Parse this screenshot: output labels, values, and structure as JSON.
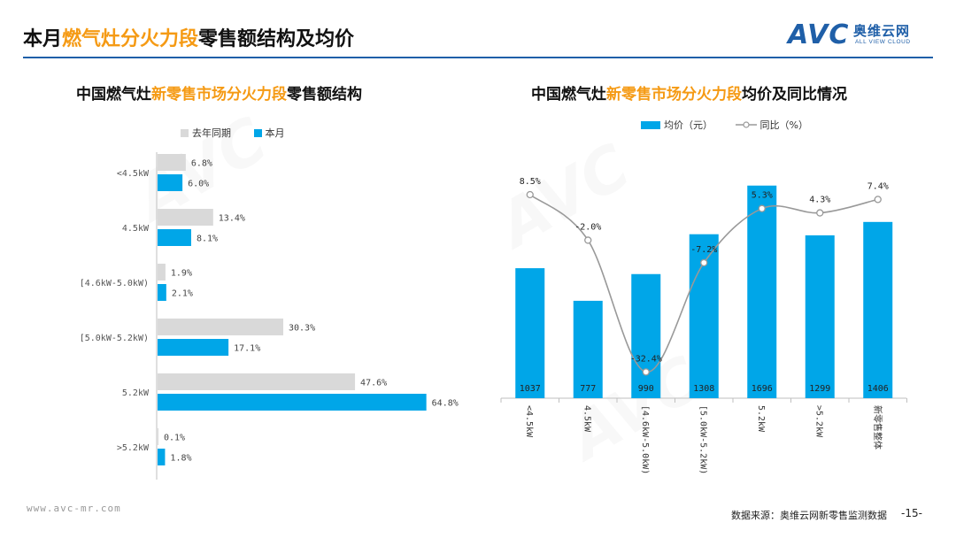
{
  "header": {
    "title_prefix": "本月",
    "title_highlight": "燃气灶分火力段",
    "title_suffix": "零售额结构及均价",
    "logo_mark": "AVC",
    "logo_cn": "奥维云网",
    "logo_en": "ALL VIEW CLOUD"
  },
  "left_chart": {
    "title_prefix": "中国燃气灶",
    "title_highlight": "新零售市场分火力段",
    "title_suffix": "零售额结构",
    "legend": [
      "去年同期",
      "本月"
    ]
  },
  "right_chart": {
    "title_prefix": "中国燃气灶",
    "title_highlight": "新零售市场分火力段",
    "title_suffix": "均价及同比情况",
    "legend": [
      "均价（元）",
      "同比（%）"
    ]
  },
  "chart_data": [
    {
      "type": "bar",
      "orientation": "horizontal",
      "categories": [
        "<4.5kW",
        "4.5kW",
        "[4.6kW-5.0kW)",
        "[5.0kW-5.2kW)",
        "5.2kW",
        ">5.2kW"
      ],
      "series": [
        {
          "name": "去年同期",
          "values": [
            6.8,
            13.4,
            1.9,
            30.3,
            47.6,
            0.1
          ],
          "labels": [
            "6.8%",
            "13.4%",
            "1.9%",
            "30.3%",
            "47.6%",
            "0.1%"
          ],
          "color": "#d9d9d9"
        },
        {
          "name": "本月",
          "values": [
            6.0,
            8.1,
            2.1,
            17.1,
            64.8,
            1.8
          ],
          "labels": [
            "6.0%",
            "8.1%",
            "2.1%",
            "17.1%",
            "64.8%",
            "1.8%"
          ],
          "color": "#00a6e8"
        }
      ],
      "xlim": [
        0,
        70
      ],
      "grid": false
    },
    {
      "type": "bar+line",
      "categories": [
        "<4.5kW",
        "4.5kW",
        "[4.6kW-5.0kW)",
        "[5.0kW-5.2kW)",
        "5.2kW",
        ">5.2kW",
        "新零售整体"
      ],
      "bars": {
        "name": "均价（元）",
        "values": [
          1037,
          777,
          990,
          1308,
          1696,
          1299,
          1406
        ],
        "color": "#00a6e8"
      },
      "line": {
        "name": "同比（%）",
        "values": [
          8.5,
          -2.0,
          -32.4,
          -7.2,
          5.3,
          4.3,
          7.4
        ],
        "labels": [
          "8.5%",
          "-2.0%",
          "-32.4%",
          "-7.2%",
          "5.3%",
          "4.3%",
          "7.4%"
        ],
        "color": "#999999"
      },
      "grid": false
    }
  ],
  "footer": {
    "url": "www.avc-mr.com",
    "source": "数据来源：奥维云网新零售监测数据",
    "page": "-15-"
  }
}
